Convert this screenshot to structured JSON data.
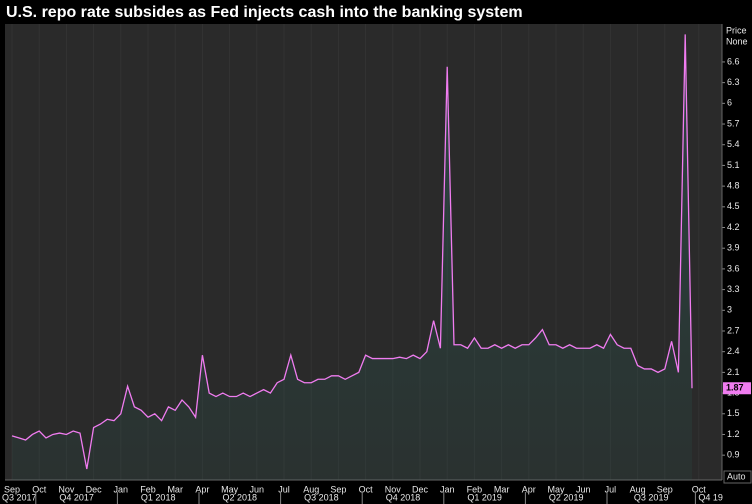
{
  "chart_data": {
    "type": "line",
    "title": "U.S. repo rate subsides as Fed injects cash into the banking system",
    "y_axis_label": "Price",
    "y_axis_sublabel": "None",
    "scale_mode": "Auto",
    "color": "#f07cf0",
    "categories": [
      "Sep",
      null,
      null,
      null,
      "Oct",
      null,
      null,
      null,
      "Nov",
      null,
      null,
      null,
      "Dec",
      null,
      null,
      null,
      "Jan",
      null,
      null,
      null,
      "Feb",
      null,
      null,
      null,
      "Mar",
      null,
      null,
      null,
      "Apr",
      null,
      null,
      null,
      "May",
      null,
      null,
      null,
      "Jun",
      null,
      null,
      null,
      "Jul",
      null,
      null,
      null,
      "Aug",
      null,
      null,
      null,
      "Sep",
      null,
      null,
      null,
      "Oct",
      null,
      null,
      null,
      "Nov",
      null,
      null,
      null,
      "Dec",
      null,
      null,
      null,
      "Jan",
      null,
      null,
      null,
      "Feb",
      null,
      null,
      null,
      "Mar",
      null,
      null,
      null,
      "Apr",
      null,
      null,
      null,
      "May",
      null,
      null,
      null,
      "Jun",
      null,
      null,
      null,
      "Jul",
      null,
      null,
      null,
      "Aug",
      null,
      null,
      null,
      "Sep",
      null,
      null,
      null,
      null,
      "Oct"
    ],
    "values": [
      1.18,
      1.15,
      1.12,
      1.2,
      1.25,
      1.15,
      1.2,
      1.22,
      1.2,
      1.25,
      1.22,
      0.7,
      1.3,
      1.35,
      1.42,
      1.4,
      1.5,
      1.9,
      1.6,
      1.55,
      1.45,
      1.5,
      1.4,
      1.6,
      1.55,
      1.7,
      1.6,
      1.45,
      2.35,
      1.8,
      1.75,
      1.8,
      1.75,
      1.75,
      1.8,
      1.75,
      1.8,
      1.85,
      1.8,
      1.95,
      2.0,
      2.35,
      2.0,
      1.95,
      1.95,
      2.0,
      2.0,
      2.05,
      2.05,
      2.0,
      2.05,
      2.1,
      2.35,
      2.3,
      2.3,
      2.3,
      2.3,
      2.32,
      2.3,
      2.35,
      2.3,
      2.4,
      2.85,
      2.45,
      6.53,
      2.5,
      2.5,
      2.45,
      2.6,
      2.45,
      2.45,
      2.5,
      2.45,
      2.5,
      2.45,
      2.5,
      2.5,
      2.6,
      2.72,
      2.5,
      2.5,
      2.45,
      2.5,
      2.45,
      2.45,
      2.45,
      2.5,
      2.45,
      2.65,
      2.5,
      2.45,
      2.45,
      2.2,
      2.15,
      2.15,
      2.1,
      2.15,
      2.55,
      2.1,
      7.0,
      1.87,
      null
    ],
    "quarters": [
      "Q3 2017",
      "Q4 2017",
      "Q1 2018",
      "Q2 2018",
      "Q3 2018",
      "Q4 2018",
      "Q1 2019",
      "Q2 2019",
      "Q3 2019",
      "Q4 19"
    ],
    "ylim": [
      0.54,
      7.15
    ],
    "yticks": [
      0.9,
      1.2,
      1.5,
      1.8,
      2.1,
      2.4,
      2.7,
      3,
      3.3,
      3.6,
      3.9,
      4.2,
      4.5,
      4.8,
      5.1,
      5.4,
      5.7,
      6,
      6.3,
      6.6
    ]
  }
}
